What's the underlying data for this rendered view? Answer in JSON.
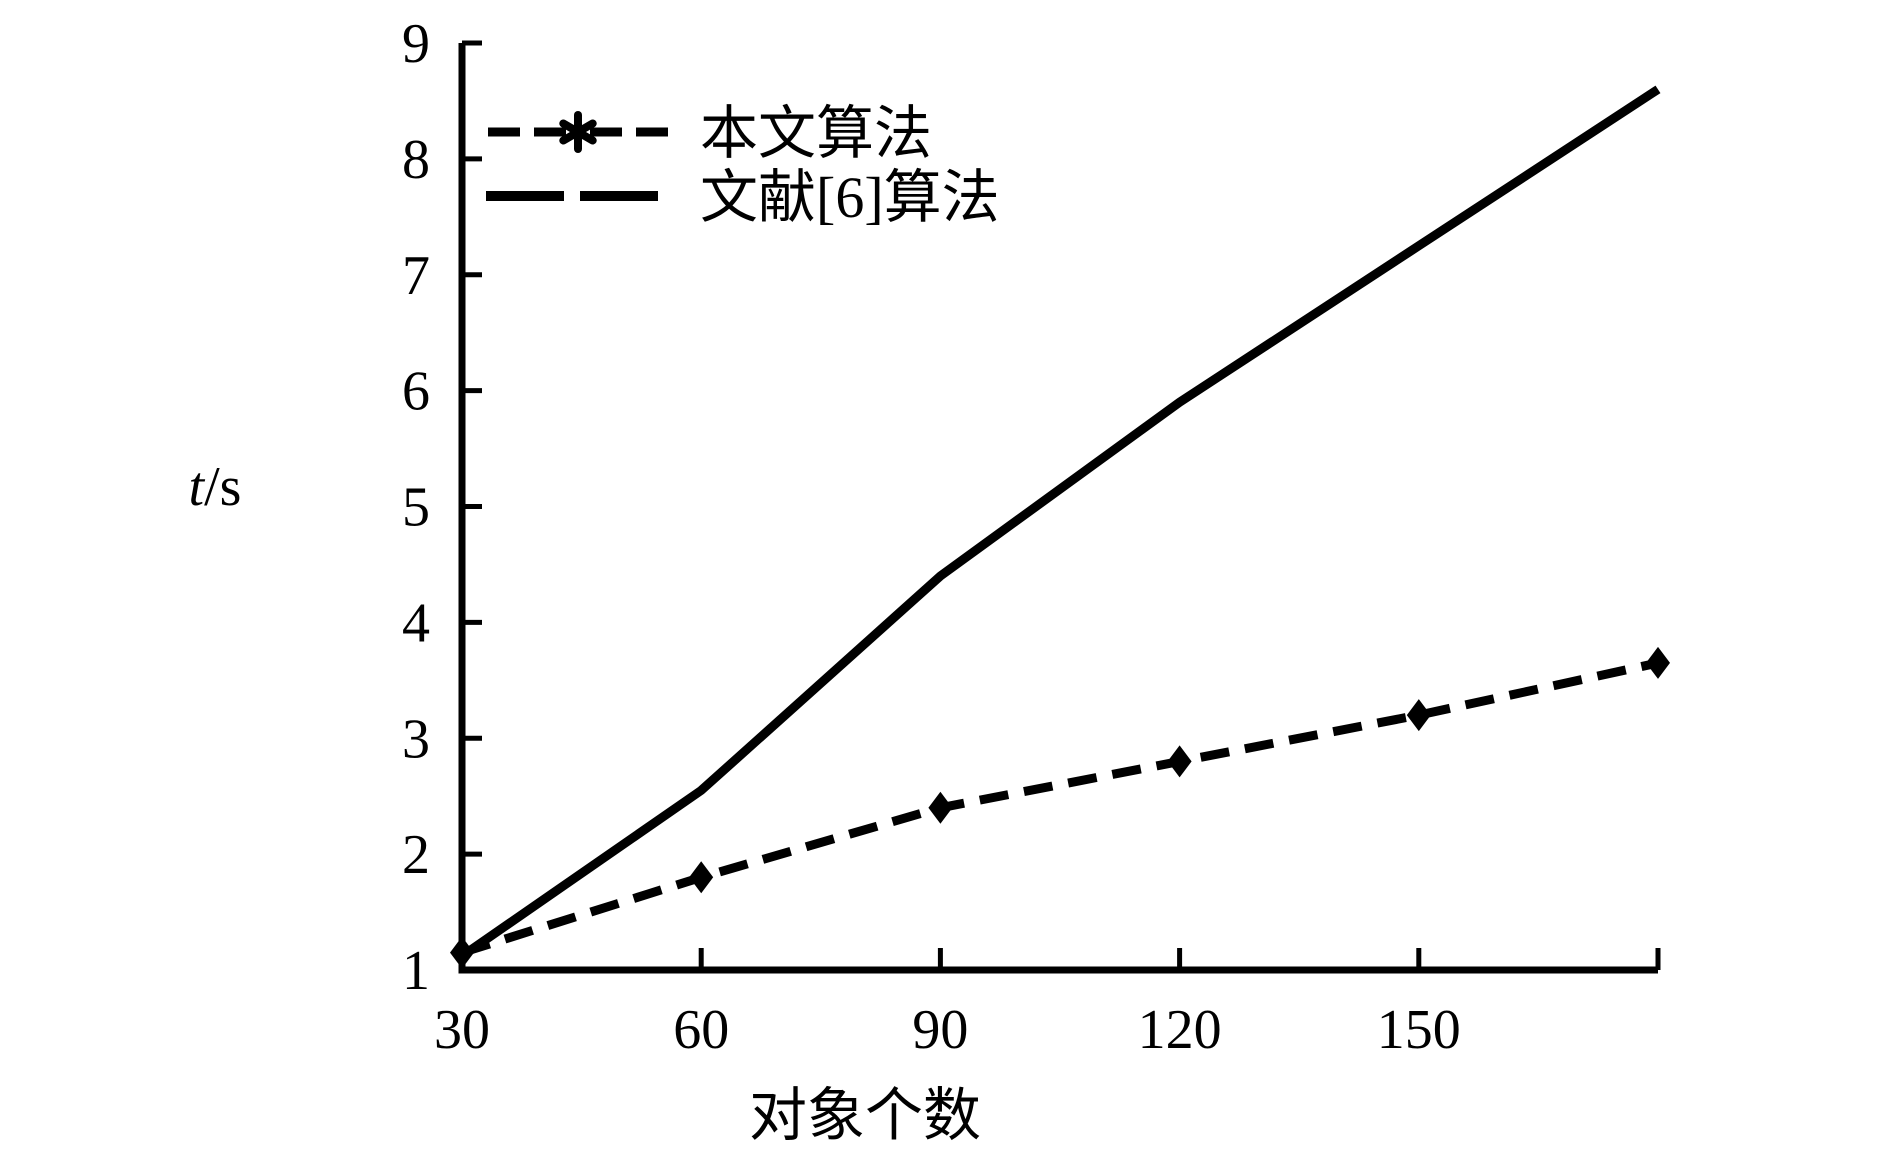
{
  "colors": {
    "ink": "#000000",
    "background": "#ffffff"
  },
  "axis_titles": {
    "y_italic": "t",
    "y_rest": "/s",
    "x": "对象个数"
  },
  "chart_data": {
    "type": "line",
    "title": "",
    "xlabel": "对象个数",
    "ylabel": "t/s",
    "xlim": [
      30,
      180
    ],
    "ylim": [
      1,
      9
    ],
    "grid": false,
    "legend_position": "upper-left-inside",
    "xtick_positions": [
      30,
      60,
      90,
      120,
      150,
      180
    ],
    "xtick_labels": [
      "30",
      "60",
      "90",
      "120",
      "150",
      ""
    ],
    "ytick_positions": [
      1,
      2,
      3,
      4,
      5,
      6,
      7,
      8,
      9
    ],
    "ytick_labels": [
      "1",
      "2",
      "3",
      "4",
      "5",
      "6",
      "7",
      "8",
      "9"
    ],
    "x": [
      30,
      60,
      90,
      120,
      150,
      180
    ],
    "series": [
      {
        "name": "本文算法",
        "values": [
          1.15,
          1.8,
          2.4,
          2.8,
          3.2,
          3.65
        ],
        "line": "dashed",
        "marker": "star",
        "color": "#000000"
      },
      {
        "name": "文献[6]算法",
        "values": [
          1.12,
          2.55,
          4.4,
          5.9,
          7.25,
          8.6
        ],
        "line": "solid",
        "marker": "none",
        "color": "#000000"
      }
    ]
  },
  "legend": {
    "items": [
      {
        "symbol": "dash-star-dash",
        "label": "本文算法"
      },
      {
        "symbol": "long-dashes",
        "label": "文献[6]算法"
      }
    ]
  }
}
